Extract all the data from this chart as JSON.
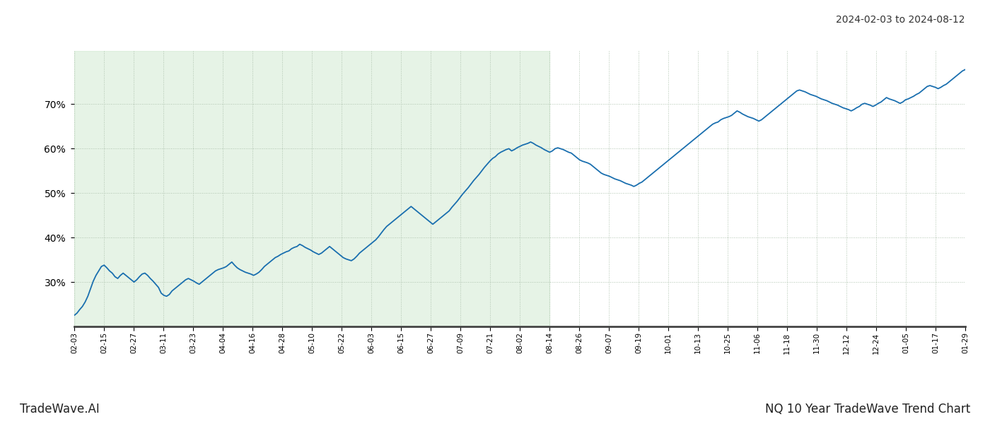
{
  "title_date_range": "2024-02-03 to 2024-08-12",
  "footer_left": "TradeWave.AI",
  "footer_right": "NQ 10 Year TradeWave Trend Chart",
  "line_color": "#1a6faf",
  "line_width": 1.3,
  "bg_color": "#ffffff",
  "grid_color": "#b0c4b0",
  "grid_linestyle": ":",
  "shade_color": "#c8e6c8",
  "shade_alpha": 0.45,
  "ylim": [
    20,
    82
  ],
  "yticks": [
    30,
    40,
    50,
    60,
    70
  ],
  "x_labels": [
    "02-03",
    "02-15",
    "02-27",
    "03-11",
    "03-23",
    "04-04",
    "04-16",
    "04-28",
    "05-10",
    "05-22",
    "06-03",
    "06-15",
    "06-27",
    "07-09",
    "07-21",
    "08-02",
    "08-14",
    "08-26",
    "09-07",
    "09-19",
    "10-01",
    "10-13",
    "10-25",
    "11-06",
    "11-18",
    "11-30",
    "12-12",
    "12-24",
    "01-05",
    "01-17",
    "01-29"
  ],
  "shade_end_label": "08-14",
  "values": [
    22.5,
    23.0,
    23.8,
    24.5,
    25.5,
    26.8,
    28.5,
    30.2,
    31.5,
    32.5,
    33.5,
    33.8,
    33.2,
    32.5,
    32.0,
    31.2,
    30.8,
    31.5,
    32.0,
    31.5,
    31.0,
    30.5,
    30.0,
    30.5,
    31.2,
    31.8,
    32.0,
    31.5,
    30.8,
    30.2,
    29.5,
    28.8,
    27.5,
    27.0,
    26.8,
    27.2,
    28.0,
    28.5,
    29.0,
    29.5,
    30.0,
    30.5,
    30.8,
    30.5,
    30.2,
    29.8,
    29.5,
    30.0,
    30.5,
    31.0,
    31.5,
    32.0,
    32.5,
    32.8,
    33.0,
    33.2,
    33.5,
    34.0,
    34.5,
    33.8,
    33.2,
    32.8,
    32.5,
    32.2,
    32.0,
    31.8,
    31.5,
    31.8,
    32.2,
    32.8,
    33.5,
    34.0,
    34.5,
    35.0,
    35.5,
    35.8,
    36.2,
    36.5,
    36.8,
    37.0,
    37.5,
    37.8,
    38.0,
    38.5,
    38.2,
    37.8,
    37.5,
    37.2,
    36.8,
    36.5,
    36.2,
    36.5,
    37.0,
    37.5,
    38.0,
    37.5,
    37.0,
    36.5,
    36.0,
    35.5,
    35.2,
    35.0,
    34.8,
    35.2,
    35.8,
    36.5,
    37.0,
    37.5,
    38.0,
    38.5,
    39.0,
    39.5,
    40.2,
    41.0,
    41.8,
    42.5,
    43.0,
    43.5,
    44.0,
    44.5,
    45.0,
    45.5,
    46.0,
    46.5,
    47.0,
    46.5,
    46.0,
    45.5,
    45.0,
    44.5,
    44.0,
    43.5,
    43.0,
    43.5,
    44.0,
    44.5,
    45.0,
    45.5,
    46.0,
    46.8,
    47.5,
    48.2,
    49.0,
    49.8,
    50.5,
    51.2,
    52.0,
    52.8,
    53.5,
    54.2,
    55.0,
    55.8,
    56.5,
    57.2,
    57.8,
    58.2,
    58.8,
    59.2,
    59.5,
    59.8,
    60.0,
    59.5,
    59.8,
    60.2,
    60.5,
    60.8,
    61.0,
    61.2,
    61.5,
    61.2,
    60.8,
    60.5,
    60.2,
    59.8,
    59.5,
    59.2,
    59.5,
    60.0,
    60.2,
    60.0,
    59.8,
    59.5,
    59.2,
    59.0,
    58.5,
    58.0,
    57.5,
    57.2,
    57.0,
    56.8,
    56.5,
    56.0,
    55.5,
    55.0,
    54.5,
    54.2,
    54.0,
    53.8,
    53.5,
    53.2,
    53.0,
    52.8,
    52.5,
    52.2,
    52.0,
    51.8,
    51.5,
    51.8,
    52.2,
    52.5,
    53.0,
    53.5,
    54.0,
    54.5,
    55.0,
    55.5,
    56.0,
    56.5,
    57.0,
    57.5,
    58.0,
    58.5,
    59.0,
    59.5,
    60.0,
    60.5,
    61.0,
    61.5,
    62.0,
    62.5,
    63.0,
    63.5,
    64.0,
    64.5,
    65.0,
    65.5,
    65.8,
    66.0,
    66.5,
    66.8,
    67.0,
    67.2,
    67.5,
    68.0,
    68.5,
    68.2,
    67.8,
    67.5,
    67.2,
    67.0,
    66.8,
    66.5,
    66.2,
    66.5,
    67.0,
    67.5,
    68.0,
    68.5,
    69.0,
    69.5,
    70.0,
    70.5,
    71.0,
    71.5,
    72.0,
    72.5,
    73.0,
    73.2,
    73.0,
    72.8,
    72.5,
    72.2,
    72.0,
    71.8,
    71.5,
    71.2,
    71.0,
    70.8,
    70.5,
    70.2,
    70.0,
    69.8,
    69.5,
    69.2,
    69.0,
    68.8,
    68.5,
    68.8,
    69.2,
    69.5,
    70.0,
    70.2,
    70.0,
    69.8,
    69.5,
    69.8,
    70.2,
    70.5,
    71.0,
    71.5,
    71.2,
    71.0,
    70.8,
    70.5,
    70.2,
    70.5,
    71.0,
    71.2,
    71.5,
    71.8,
    72.2,
    72.5,
    73.0,
    73.5,
    74.0,
    74.2,
    74.0,
    73.8,
    73.5,
    73.8,
    74.2,
    74.5,
    75.0,
    75.5,
    76.0,
    76.5,
    77.0,
    77.5,
    77.8
  ]
}
